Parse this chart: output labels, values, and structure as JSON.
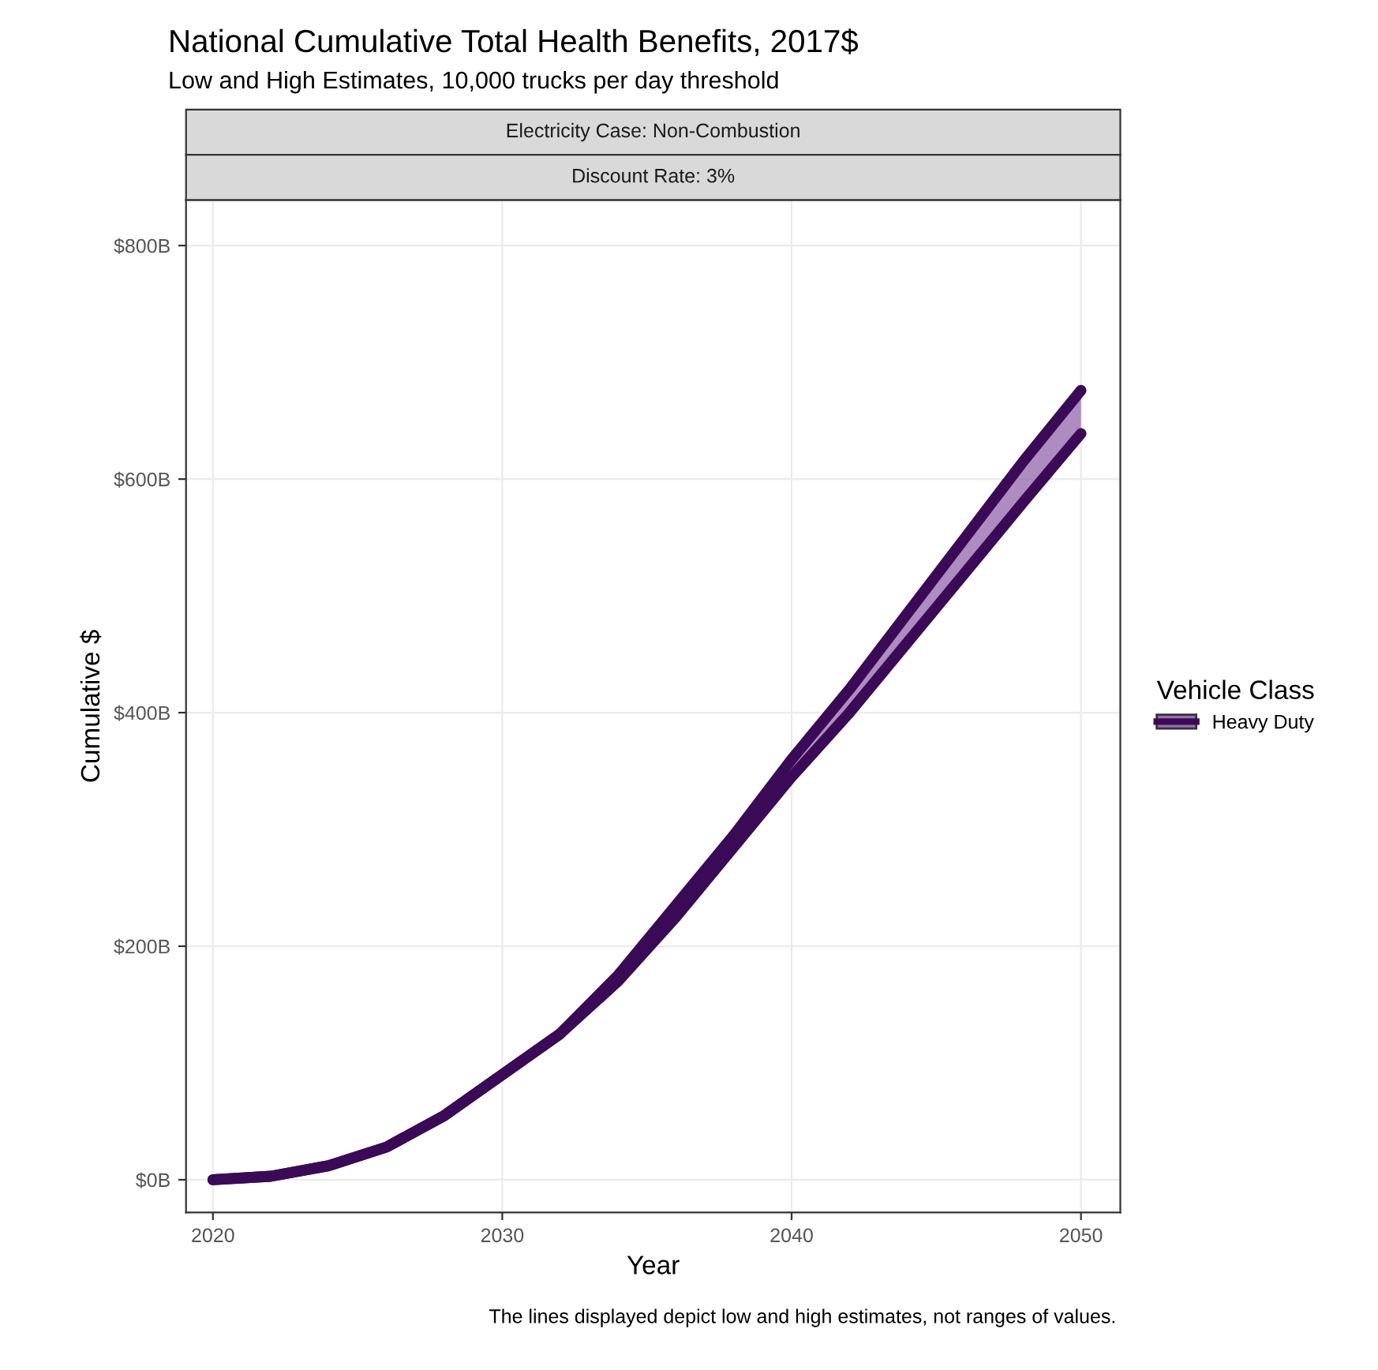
{
  "chart_data": {
    "type": "line",
    "title": "National Cumulative Total Health Benefits, 2017$",
    "subtitle": "Low and High Estimates, 10,000 trucks per day threshold",
    "xlabel": "Year",
    "ylabel": "Cumulative $",
    "legend_title": "Vehicle Class",
    "annotations": [
      "Electricity Case: Non-Combustion",
      "Discount Rate: 3%",
      "The lines displayed depict low and high estimates, not ranges of values."
    ],
    "x": [
      2020,
      2022,
      2024,
      2026,
      2028,
      2030,
      2032,
      2034,
      2036,
      2038,
      2040,
      2042,
      2044,
      2046,
      2048,
      2050
    ],
    "series": [
      {
        "name": "Heavy Duty",
        "color": "#3b0a57",
        "values": [
          0,
          3,
          12,
          28,
          55,
          90,
          125,
          175,
          235,
          295,
          360,
          420,
          485,
          550,
          615,
          676
        ],
        "lower": [
          0,
          3,
          12,
          28,
          55,
          90,
          125,
          170,
          225,
          285,
          345,
          400,
          460,
          520,
          580,
          639
        ],
        "upper": [
          0,
          3,
          12,
          28,
          55,
          90,
          125,
          175,
          235,
          295,
          360,
          420,
          485,
          550,
          615,
          676
        ]
      },
      {
        "color": "#3b0a57",
        "values": [
          0,
          3,
          12,
          28,
          55,
          90,
          125,
          170,
          225,
          285,
          345,
          400,
          460,
          520,
          580,
          639
        ]
      }
    ],
    "xlim": [
      2019.07,
      2051.36
    ],
    "ylim": [
      -28,
      839
    ],
    "xticks": [
      2020,
      2030,
      2040,
      2050
    ],
    "yticks": [
      {
        "value": 0,
        "label": "$0B"
      },
      {
        "value": 200,
        "label": "$200B"
      },
      {
        "value": 400,
        "label": "$400B"
      },
      {
        "value": 600,
        "label": "$600B"
      },
      {
        "value": 800,
        "label": "$800B"
      }
    ],
    "grid": true,
    "legend": "right",
    "line_style": "solid",
    "marker": "none"
  }
}
